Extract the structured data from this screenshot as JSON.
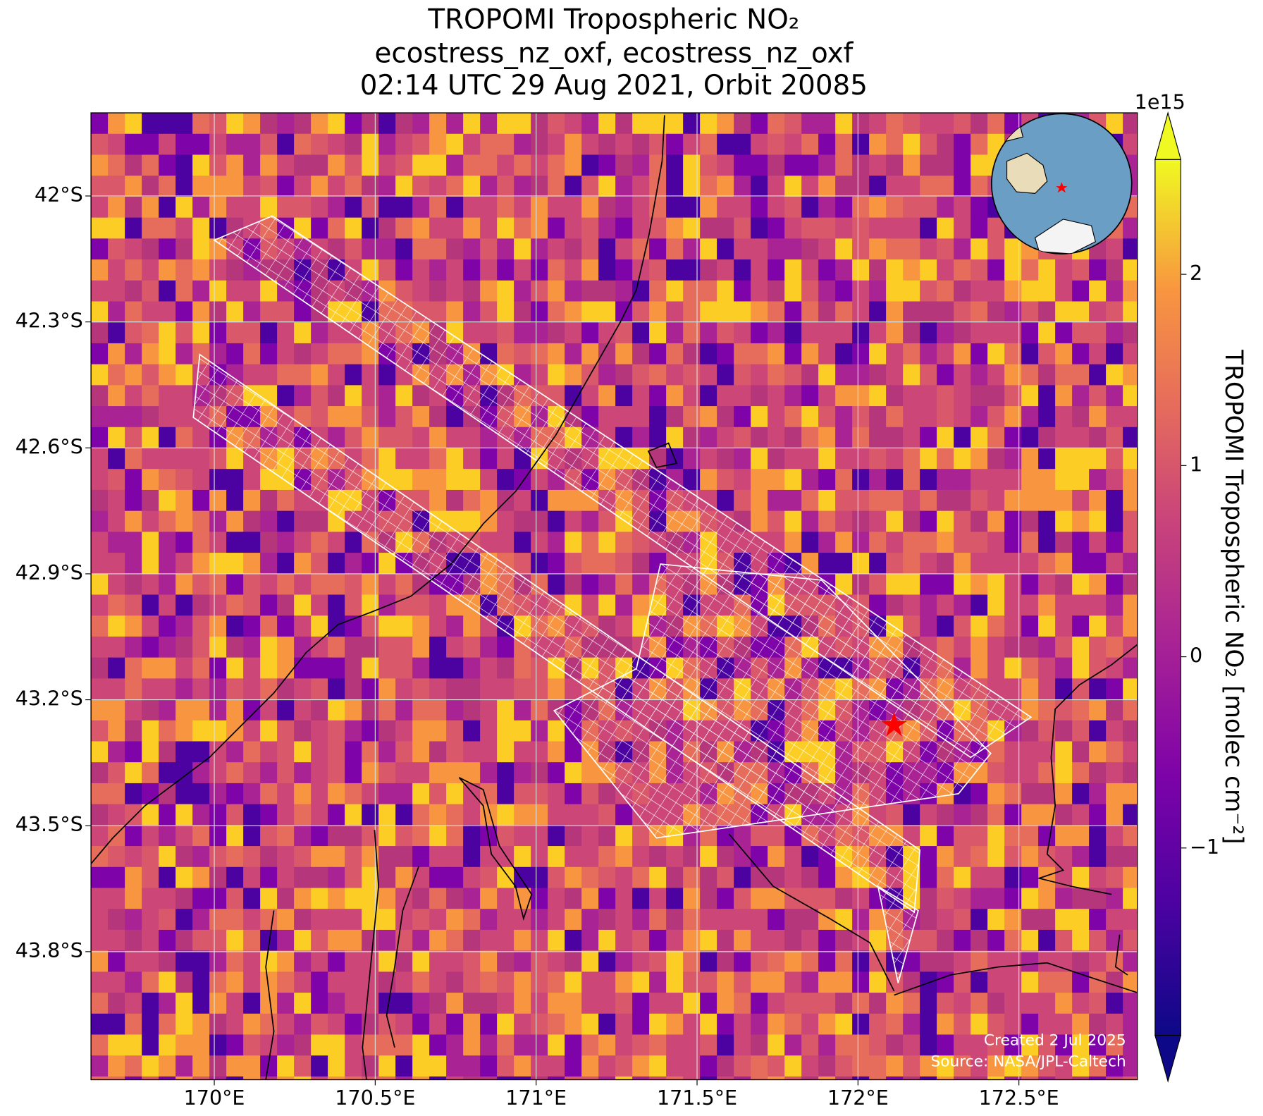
{
  "chart_data": {
    "type": "map",
    "title": "TROPOMI Tropospheric NO₂",
    "subtitle": "ecostress_nz_oxf, ecostress_nz_oxf",
    "subtitle2": "02:14 UTC 29 Aug 2021, Orbit 20085",
    "xlim": [
      169.617,
      172.868
    ],
    "ylim": [
      -44.105,
      -41.802
    ],
    "xticks": [
      {
        "value": 170,
        "label": "170°E"
      },
      {
        "value": 170.5,
        "label": "170.5°E"
      },
      {
        "value": 171,
        "label": "171°E"
      },
      {
        "value": 171.5,
        "label": "171.5°E"
      },
      {
        "value": 172,
        "label": "172°E"
      },
      {
        "value": 172.5,
        "label": "172.5°E"
      }
    ],
    "yticks": [
      {
        "value": -42,
        "label": "42°S"
      },
      {
        "value": -42.3,
        "label": "42.3°S"
      },
      {
        "value": -42.6,
        "label": "42.6°S"
      },
      {
        "value": -42.9,
        "label": "42.9°S"
      },
      {
        "value": -43.2,
        "label": "43.2°S"
      },
      {
        "value": -43.5,
        "label": "43.5°S"
      },
      {
        "value": -43.8,
        "label": "43.8°S"
      }
    ],
    "grid": true,
    "colorbar": {
      "label": "TROPOMI Tropospheric NO₂ [molec cm⁻²]",
      "scale_label": "1e15",
      "clim": [
        -1.98,
        2.6
      ],
      "ticks": [
        {
          "value": -1,
          "label": "−1"
        },
        0,
        1,
        2
      ],
      "colormap": "plasma"
    },
    "footer": [
      "Created 2 Jul 2025",
      "Source: NASA/JPL-Caltech"
    ]
  }
}
